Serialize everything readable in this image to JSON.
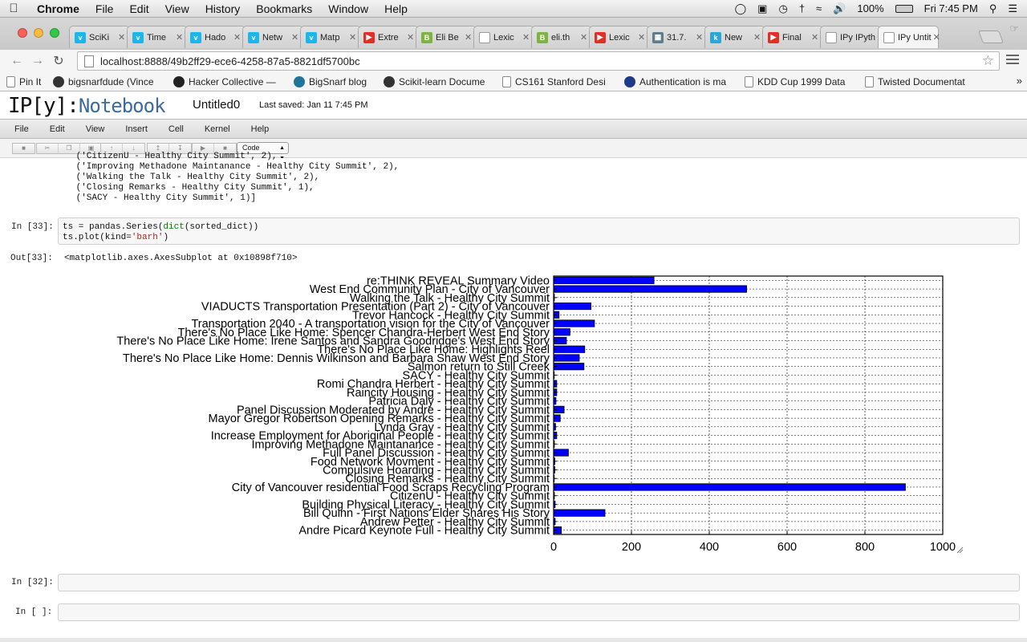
{
  "menubar": {
    "app": "Chrome",
    "items": [
      "File",
      "Edit",
      "View",
      "History",
      "Bookmarks",
      "Window",
      "Help"
    ],
    "battery": "100%",
    "clock": "Fri 7:45 PM"
  },
  "tabs": [
    {
      "label": "SciKi",
      "icon": "vimeo-icon",
      "color": "#1ab7ea",
      "glyph": "v"
    },
    {
      "label": "Time",
      "icon": "vimeo-icon",
      "color": "#1ab7ea",
      "glyph": "v"
    },
    {
      "label": "Hado",
      "icon": "vimeo-icon",
      "color": "#1ab7ea",
      "glyph": "v"
    },
    {
      "label": "Netw",
      "icon": "vimeo-icon",
      "color": "#1ab7ea",
      "glyph": "v"
    },
    {
      "label": "Matp",
      "icon": "vimeo-icon",
      "color": "#1ab7ea",
      "glyph": "v"
    },
    {
      "label": "Extre",
      "icon": "youtube-icon",
      "color": "#e52d27",
      "glyph": "▶"
    },
    {
      "label": "Eli Be",
      "icon": "bloglovin-icon",
      "color": "#7cb342",
      "glyph": "B"
    },
    {
      "label": "Lexic",
      "icon": "page-icon",
      "color": "#ffffff",
      "glyph": ""
    },
    {
      "label": "eli.th",
      "icon": "bloglovin-icon",
      "color": "#7cb342",
      "glyph": "B"
    },
    {
      "label": "Lexic",
      "icon": "youtube-icon",
      "color": "#e52d27",
      "glyph": "▶"
    },
    {
      "label": "31.7.",
      "icon": "doc-icon",
      "color": "#607d8b",
      "glyph": "▦"
    },
    {
      "label": "New",
      "icon": "k-icon",
      "color": "#2aa7d8",
      "glyph": "k"
    },
    {
      "label": "Final",
      "icon": "youtube-icon",
      "color": "#e52d27",
      "glyph": "▶"
    },
    {
      "label": "IPy IPyth",
      "icon": "ipython-icon",
      "color": "#ffffff",
      "glyph": ""
    },
    {
      "label": "IPy Untit",
      "icon": "ipython-icon",
      "color": "#ffffff",
      "glyph": "",
      "active": true
    }
  ],
  "url": "localhost:8888/49b2ff29-ece6-4258-87a5-8821df5700bc",
  "bookmarks": [
    {
      "label": "Pin It",
      "icon": "page-icon"
    },
    {
      "label": "bigsnarfdude (Vince",
      "icon": "github-icon"
    },
    {
      "label": "Hacker Collective —",
      "icon": "hacker-icon"
    },
    {
      "label": "BigSnarf blog",
      "icon": "wordpress-icon"
    },
    {
      "label": "Scikit-learn Docume",
      "icon": "github-icon"
    },
    {
      "label": "CS161 Stanford Desi",
      "icon": "page-icon"
    },
    {
      "label": "Authentication is ma",
      "icon": "idx-icon"
    },
    {
      "label": "KDD Cup 1999 Data",
      "icon": "page-icon"
    },
    {
      "label": "Twisted Documentat",
      "icon": "page-icon"
    }
  ],
  "ipython": {
    "logo": "IP[y]:",
    "logo_text": "Notebook",
    "notebook_name": "Untitled0",
    "last_saved": "Last saved: Jan 11 7:45 PM",
    "menu": [
      "File",
      "Edit",
      "View",
      "Insert",
      "Cell",
      "Kernel",
      "Help"
    ],
    "cell_type": "Code"
  },
  "notebook": {
    "prev_output_lines": [
      " ('CitizenU - Healthy City Summit', 2),",
      " ('Improving Methadone Maintanance - Healthy City Summit', 2),",
      " ('Walking the Talk - Healthy City Summit', 2),",
      " ('Closing Remarks - Healthy City Summit', 1),",
      " ('SACY - Healthy City Summit', 1)]"
    ],
    "in33_prompt": "In [33]:",
    "in33_line1_a": "ts = pandas.Series(",
    "in33_line1_b": "dict",
    "in33_line1_c": "(sorted_dict))",
    "in33_line2_a": "ts.plot(kind=",
    "in33_line2_b": "'barh'",
    "in33_line2_c": ")",
    "out33_prompt": "Out[33]:",
    "out33_text": "<matplotlib.axes.AxesSubplot at 0x10898f710>",
    "in32_prompt": "In [32]:",
    "in_empty_prompt": "In [ ]:"
  },
  "chart_data": {
    "type": "bar",
    "orientation": "horizontal",
    "categories": [
      "re:THINK REVEAL Summary Video",
      "West End Community Plan - City of Vancouver",
      "Walking the Talk - Healthy City Summit",
      "VIADUCTS Transportation Presentation (Part 2) - City of Vancouver",
      "Trevor Hancock - Healthy City Summit",
      "Transportation 2040 - A transportation vision for the City of Vancouver",
      "There's No Place Like Home: Spencer Chandra-Herbert West End Story",
      "There's No Place Like Home: Irene Santos and Sandra Goodridge's West End Story",
      "There's No Place Like Home: Highlights Reel",
      "There's No Place Like Home: Dennis Wilkinson and Barbara Shaw West End Story",
      "Salmon return to Still Creek",
      "SACY - Healthy City Summit",
      "Romi Chandra Herbert - Healthy City Summit",
      "Raincity Housing - Healthy City Summit",
      "Patricia Daly - Healthy City Summit",
      "Panel Discussion Moderated by Andre - Healthy City Summit",
      "Mayor Gregor Robertson Opening Remarks - Healthy City Summit",
      "Lynda Gray - Healthy City Summit",
      "Increase Employment for Aboriginal People - Healthy City Summit",
      "Improving Methadone Maintanance - Healthy City Summit",
      "Full Panel Discussion - Healthy City Summit",
      "Food Network Movment - Healthy City Summit",
      "Compulsive Hoarding - Healthy City Summit",
      "Closing Remarks - Healthy City Summit",
      "City of Vancouver residential Food Scraps Recycling Program",
      "CitizenU - Healthy City Summit",
      "Building Physical Literacy - Healthy City Summit",
      "Bill Quinn - First Nations Elder Shares His Story",
      "Andrew Petter - Healthy City Summit",
      "Andre Picard Keynote Full - Healthy City Summit"
    ],
    "values": [
      258,
      496,
      2,
      96,
      14,
      105,
      42,
      33,
      80,
      66,
      78,
      1,
      8,
      8,
      6,
      27,
      17,
      5,
      8,
      2,
      38,
      3,
      3,
      1,
      904,
      2,
      4,
      132,
      4,
      20
    ],
    "xlim": [
      0,
      1000
    ],
    "xticks": [
      0,
      200,
      400,
      600,
      800,
      1000
    ],
    "bar_color": "#0000ff",
    "grid": true,
    "title": "",
    "xlabel": "",
    "ylabel": ""
  }
}
